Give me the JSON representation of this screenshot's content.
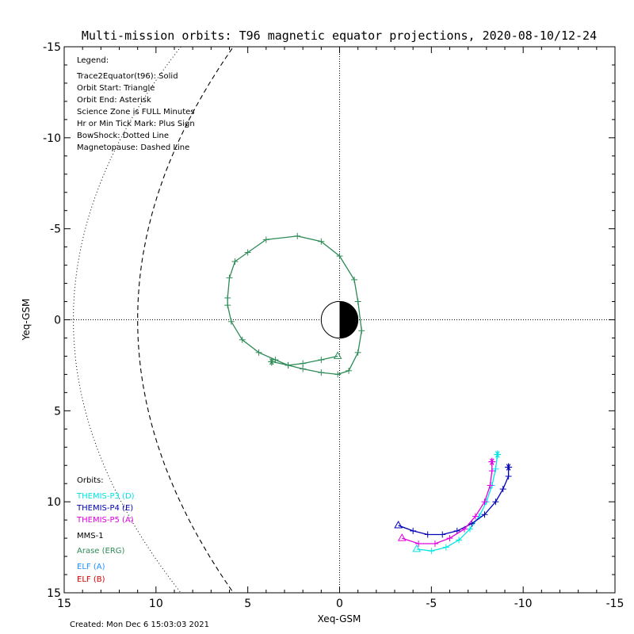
{
  "chart_data": {
    "type": "line",
    "title": "Multi-mission orbits: T96 magnetic equator projections, 2020-08-10/12-24",
    "xlabel": "Xeq-GSM",
    "ylabel": "Yeq-GSM",
    "xlim": [
      15,
      -15
    ],
    "ylim": [
      -15,
      15
    ],
    "x_ticks": [
      15,
      10,
      5,
      0,
      -5,
      -10,
      -15
    ],
    "x_tick_labels": [
      "15",
      "10",
      "5",
      "0",
      "-5",
      "-10",
      "-15"
    ],
    "y_ticks": [
      -15,
      -10,
      -5,
      0,
      5,
      10,
      15
    ],
    "y_tick_labels": [
      "-15",
      "-10",
      "-5",
      "0",
      "5",
      "10",
      "15"
    ],
    "legend_heading": "Legend:",
    "legend_lines": [
      "Trace2Equator(t96): Solid",
      "Orbit Start: Triangle",
      "Orbit End: Asterisk",
      "Science Zone is FULL Minutes",
      "Hr or Min Tick Mark: Plus Sign",
      "BowShock: Dotted Line",
      "Magnetopause: Dashed Line"
    ],
    "orbits_heading": "Orbits:",
    "orbit_labels": [
      {
        "name": "THEMIS-P3 (D)",
        "color": "#00e5e5"
      },
      {
        "name": "THEMIS-P4 (E)",
        "color": "#0000b4"
      },
      {
        "name": "THEMIS-P5 (A)",
        "color": "#e000e0"
      },
      {
        "name": "MMS-1",
        "color": "#000000"
      },
      {
        "name": "Arase (ERG)",
        "color": "#2e8b57"
      },
      {
        "name": "ELF (A)",
        "color": "#1e90ff"
      },
      {
        "name": "ELF (B)",
        "color": "#d00000"
      }
    ],
    "footer": "Created: Mon Dec  6 15:03:03 2021",
    "series": [
      {
        "name": "THEMIS-P3 (D)",
        "color": "#00e5e5",
        "x": [
          -4.2,
          -5.0,
          -5.8,
          -6.5,
          -7.1,
          -7.6,
          -8.0,
          -8.3,
          -8.5,
          -8.6
        ],
        "y": [
          12.6,
          12.7,
          12.5,
          12.1,
          11.5,
          10.8,
          10.0,
          9.1,
          8.2,
          7.4
        ],
        "start_marker": "triangle",
        "end_marker": "asterisk"
      },
      {
        "name": "THEMIS-P4 (E)",
        "color": "#0000b4",
        "x": [
          -3.2,
          -4.0,
          -4.8,
          -5.6,
          -6.4,
          -7.2,
          -7.9,
          -8.5,
          -8.9,
          -9.2,
          -9.2
        ],
        "y": [
          11.3,
          11.6,
          11.8,
          11.8,
          11.6,
          11.2,
          10.7,
          10.0,
          9.3,
          8.6,
          8.1
        ],
        "start_marker": "triangle",
        "end_marker": "asterisk"
      },
      {
        "name": "THEMIS-P5 (A)",
        "color": "#e000e0",
        "x": [
          -3.4,
          -4.3,
          -5.2,
          -6.0,
          -6.8,
          -7.4,
          -7.9,
          -8.2,
          -8.3,
          -8.3
        ],
        "y": [
          12.0,
          12.3,
          12.3,
          12.0,
          11.5,
          10.8,
          10.0,
          9.1,
          8.3,
          7.8
        ],
        "start_marker": "triangle",
        "end_marker": "asterisk"
      },
      {
        "name": "Arase (ERG)",
        "color": "#2e8b57",
        "x": [
          0.1,
          1.0,
          2.0,
          2.8,
          3.5,
          4.4,
          5.3,
          5.9,
          6.1,
          6.1,
          6.0,
          5.7,
          5.0,
          4.0,
          2.3,
          1.0,
          0.0,
          -0.8,
          -1.0,
          -1.2,
          -1.0,
          -0.5,
          0.1,
          1.0,
          2.0,
          2.8,
          3.7
        ],
        "y": [
          2.0,
          2.2,
          2.4,
          2.5,
          2.2,
          1.8,
          1.1,
          0.1,
          -0.8,
          -1.2,
          -2.3,
          -3.2,
          -3.7,
          -4.4,
          -4.6,
          -4.3,
          -3.5,
          -2.2,
          -1.0,
          0.6,
          1.8,
          2.8,
          3.0,
          2.9,
          2.7,
          2.5,
          2.3
        ],
        "start_marker": "triangle",
        "end_marker": "asterisk"
      }
    ],
    "magnetopause": {
      "subsolar_x": -11,
      "flaring": 0.5,
      "style": "dashed"
    },
    "bow_shock": {
      "subsolar_x": -14.5,
      "style": "dotted"
    },
    "earth": {
      "radius": 1,
      "day_side": "white",
      "night_side": "black"
    }
  }
}
